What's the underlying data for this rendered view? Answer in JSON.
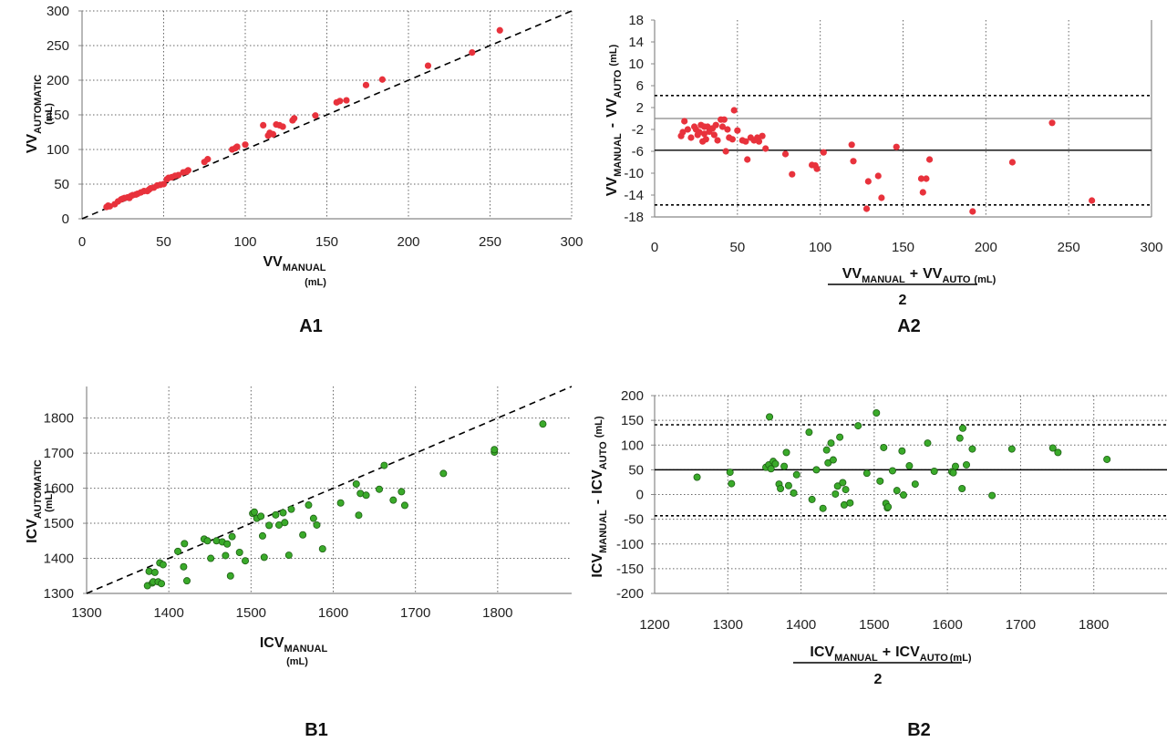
{
  "figure": {
    "panel_labels": [
      "A1",
      "A2",
      "B1",
      "B2"
    ]
  },
  "colors": {
    "red_points": "#e8323c",
    "green_points": "#3aaa2a",
    "green_edge": "#1d5e14",
    "grid": "#666666",
    "axis": "#888888",
    "line": "#000000"
  },
  "chart_data": [
    {
      "id": "A1",
      "type": "scatter",
      "panel_label": "A1",
      "xlabel": {
        "main": "VV",
        "sub": "MANUAL",
        "unit": "(mL)"
      },
      "ylabel": {
        "main": "VV",
        "sub": "AUTOMATIC",
        "unit": "(mL)"
      },
      "xlim": [
        0,
        300
      ],
      "ylim": [
        0,
        300
      ],
      "xticks": [
        0,
        50,
        100,
        150,
        200,
        250,
        300
      ],
      "yticks": [
        0,
        50,
        100,
        150,
        200,
        250,
        300
      ],
      "reference_line": "identity (dashed)",
      "grid": "dotted",
      "points": [
        [
          15,
          17
        ],
        [
          16,
          19
        ],
        [
          17,
          18
        ],
        [
          20,
          21
        ],
        [
          22,
          25
        ],
        [
          24,
          28
        ],
        [
          25,
          29
        ],
        [
          26,
          30
        ],
        [
          28,
          31
        ],
        [
          29,
          30
        ],
        [
          30,
          33
        ],
        [
          31,
          34
        ],
        [
          33,
          35
        ],
        [
          34,
          36
        ],
        [
          36,
          38
        ],
        [
          38,
          40
        ],
        [
          40,
          40
        ],
        [
          41,
          42
        ],
        [
          42,
          44
        ],
        [
          44,
          45
        ],
        [
          46,
          48
        ],
        [
          48,
          49
        ],
        [
          50,
          50
        ],
        [
          52,
          57
        ],
        [
          53,
          59
        ],
        [
          55,
          60
        ],
        [
          57,
          62
        ],
        [
          59,
          63
        ],
        [
          62,
          67
        ],
        [
          64,
          68
        ],
        [
          65,
          70
        ],
        [
          75,
          82
        ],
        [
          77,
          86
        ],
        [
          92,
          100
        ],
        [
          94,
          102
        ],
        [
          95,
          104
        ],
        [
          100,
          107
        ],
        [
          111,
          135
        ],
        [
          114,
          120
        ],
        [
          115,
          124
        ],
        [
          117,
          122
        ],
        [
          119,
          136
        ],
        [
          121,
          135
        ],
        [
          123,
          133
        ],
        [
          129,
          142
        ],
        [
          130,
          145
        ],
        [
          143,
          149
        ],
        [
          156,
          168
        ],
        [
          158,
          170
        ],
        [
          162,
          171
        ],
        [
          174,
          193
        ],
        [
          184,
          201
        ],
        [
          212,
          221
        ],
        [
          239,
          240
        ],
        [
          256,
          272
        ]
      ]
    },
    {
      "id": "A2",
      "type": "scatter",
      "panel_label": "A2",
      "xlabel": {
        "num_a": "VV",
        "num_a_sub": "MANUAL",
        "plus": "+",
        "num_b": "VV",
        "num_b_sub": "AUTO",
        "unit": "(mL)",
        "denominator": "2"
      },
      "ylabel": {
        "a": "VV",
        "a_sub": "MANUAL",
        "minus": "-",
        "b": "VV",
        "b_sub": "AUTO",
        "unit": "(mL)"
      },
      "xlim": [
        0,
        300
      ],
      "ylim": [
        -18,
        18
      ],
      "xticks": [
        0,
        50,
        100,
        150,
        200,
        250,
        300
      ],
      "yticks": [
        -18,
        -14,
        -10,
        -6,
        -2,
        2,
        6,
        10,
        14,
        18
      ],
      "ytick_labels": [
        "-18",
        "-14",
        "-10",
        "-6",
        "-2",
        "2",
        "6",
        "10",
        "14",
        "18"
      ],
      "grid": "dotted vertical",
      "zero_line": 0,
      "mean_line": -5.8,
      "limits_of_agreement": [
        -15.8,
        4.2
      ],
      "points": [
        [
          16,
          -3.2
        ],
        [
          17,
          -2.5
        ],
        [
          18,
          -0.5
        ],
        [
          20,
          -2
        ],
        [
          22,
          -3.5
        ],
        [
          24,
          -1.5
        ],
        [
          25,
          -2
        ],
        [
          26,
          -3
        ],
        [
          27,
          -2.5
        ],
        [
          28,
          -1.2
        ],
        [
          29,
          -4.2
        ],
        [
          30,
          -1.5
        ],
        [
          30,
          -2.8
        ],
        [
          31,
          -3.8
        ],
        [
          32,
          -1.5
        ],
        [
          33,
          -2.4
        ],
        [
          35,
          -1.8
        ],
        [
          36,
          -3
        ],
        [
          37,
          -1.2
        ],
        [
          38,
          -4
        ],
        [
          40,
          -0.2
        ],
        [
          41,
          -1.5
        ],
        [
          42,
          -0.2
        ],
        [
          43,
          -6
        ],
        [
          44,
          -2
        ],
        [
          45,
          -3.5
        ],
        [
          47,
          -3.8
        ],
        [
          48,
          1.5
        ],
        [
          50,
          -2.2
        ],
        [
          53,
          -4
        ],
        [
          55,
          -4.2
        ],
        [
          56,
          -7.5
        ],
        [
          58,
          -3.5
        ],
        [
          60,
          -4
        ],
        [
          62,
          -3.5
        ],
        [
          63,
          -4.2
        ],
        [
          65,
          -3.2
        ],
        [
          67,
          -5.5
        ],
        [
          79,
          -6.5
        ],
        [
          83,
          -10.2
        ],
        [
          95,
          -8.5
        ],
        [
          97,
          -8.6
        ],
        [
          98,
          -9.2
        ],
        [
          102,
          -6.2
        ],
        [
          119,
          -4.8
        ],
        [
          120,
          -7.8
        ],
        [
          128,
          -16.5
        ],
        [
          129,
          -11.5
        ],
        [
          135,
          -10.5
        ],
        [
          137,
          -14.5
        ],
        [
          146,
          -5.2
        ],
        [
          161,
          -11
        ],
        [
          162,
          -13.5
        ],
        [
          164,
          -11
        ],
        [
          166,
          -7.5
        ],
        [
          192,
          -17
        ],
        [
          216,
          -8
        ],
        [
          240,
          -0.8
        ],
        [
          264,
          -15
        ]
      ]
    },
    {
      "id": "B1",
      "type": "scatter",
      "panel_label": "B1",
      "xlabel": {
        "main": "ICV",
        "sub": "MANUAL",
        "unit": "(mL)"
      },
      "ylabel": {
        "main": "ICV",
        "sub": "AUTOMATIC",
        "unit": "(mL)"
      },
      "xlim": [
        1300,
        1890
      ],
      "ylim": [
        1300,
        1890
      ],
      "xticks": [
        1300,
        1400,
        1500,
        1600,
        1700,
        1800
      ],
      "yticks": [
        1300,
        1400,
        1500,
        1600,
        1700,
        1800
      ],
      "reference_line": "identity (dashed)",
      "grid": "dotted",
      "points": [
        [
          1374,
          1322
        ],
        [
          1376,
          1363
        ],
        [
          1380,
          1330
        ],
        [
          1381,
          1333
        ],
        [
          1383,
          1360
        ],
        [
          1387,
          1333
        ],
        [
          1389,
          1387
        ],
        [
          1391,
          1328
        ],
        [
          1393,
          1382
        ],
        [
          1411,
          1420
        ],
        [
          1418,
          1376
        ],
        [
          1419,
          1442
        ],
        [
          1422,
          1336
        ],
        [
          1443,
          1455
        ],
        [
          1447,
          1450
        ],
        [
          1451,
          1400
        ],
        [
          1458,
          1450
        ],
        [
          1465,
          1447
        ],
        [
          1469,
          1408
        ],
        [
          1471,
          1441
        ],
        [
          1475,
          1350
        ],
        [
          1477,
          1462
        ],
        [
          1486,
          1417
        ],
        [
          1493,
          1393
        ],
        [
          1502,
          1528
        ],
        [
          1504,
          1532
        ],
        [
          1507,
          1514
        ],
        [
          1512,
          1520
        ],
        [
          1514,
          1464
        ],
        [
          1516,
          1403
        ],
        [
          1522,
          1494
        ],
        [
          1530,
          1524
        ],
        [
          1534,
          1495
        ],
        [
          1539,
          1530
        ],
        [
          1541,
          1502
        ],
        [
          1546,
          1409
        ],
        [
          1549,
          1540
        ],
        [
          1563,
          1467
        ],
        [
          1570,
          1552
        ],
        [
          1576,
          1514
        ],
        [
          1580,
          1495
        ],
        [
          1587,
          1427
        ],
        [
          1609,
          1558
        ],
        [
          1628,
          1612
        ],
        [
          1631,
          1523
        ],
        [
          1633,
          1585
        ],
        [
          1640,
          1580
        ],
        [
          1656,
          1597
        ],
        [
          1662,
          1665
        ],
        [
          1673,
          1566
        ],
        [
          1683,
          1590
        ],
        [
          1687,
          1551
        ],
        [
          1734,
          1642
        ],
        [
          1796,
          1703
        ],
        [
          1796,
          1710
        ],
        [
          1855,
          1783
        ]
      ]
    },
    {
      "id": "B2",
      "type": "scatter",
      "panel_label": "B2",
      "xlabel": {
        "num_a": "ICV",
        "num_a_sub": "MANUAL",
        "plus": "+",
        "num_b": "ICV",
        "num_b_sub": "AUTO",
        "unit": "(mL)",
        "denominator": "2"
      },
      "ylabel": {
        "a": "ICV",
        "a_sub": "MANUAL",
        "minus": "-",
        "b": "ICV",
        "b_sub": "AUTO",
        "unit": "(mL)"
      },
      "xlim": [
        1200,
        1900
      ],
      "ylim": [
        -200,
        200
      ],
      "xticks": [
        1200,
        1300,
        1400,
        1500,
        1600,
        1700,
        1800
      ],
      "yticks": [
        -200,
        -150,
        -100,
        -50,
        0,
        50,
        100,
        150,
        200
      ],
      "ytick_labels": [
        "-200",
        "-150",
        "-100",
        "-50",
        "0",
        "50",
        "100",
        "150",
        "200"
      ],
      "grid": "dotted",
      "mean_line": 50,
      "limits_of_agreement": [
        -43,
        141
      ],
      "points": [
        [
          1258,
          35
        ],
        [
          1303,
          45
        ],
        [
          1305,
          22
        ],
        [
          1352,
          55
        ],
        [
          1356,
          60
        ],
        [
          1357,
          157
        ],
        [
          1359,
          52
        ],
        [
          1362,
          67
        ],
        [
          1365,
          62
        ],
        [
          1370,
          21
        ],
        [
          1372,
          12
        ],
        [
          1377,
          57
        ],
        [
          1380,
          85
        ],
        [
          1383,
          18
        ],
        [
          1390,
          3
        ],
        [
          1394,
          40
        ],
        [
          1411,
          126
        ],
        [
          1415,
          -10
        ],
        [
          1421,
          50
        ],
        [
          1430,
          -28
        ],
        [
          1435,
          90
        ],
        [
          1437,
          64
        ],
        [
          1441,
          104
        ],
        [
          1444,
          70
        ],
        [
          1447,
          1
        ],
        [
          1450,
          17
        ],
        [
          1453,
          116
        ],
        [
          1457,
          24
        ],
        [
          1459,
          -21
        ],
        [
          1461,
          10
        ],
        [
          1467,
          -17
        ],
        [
          1478,
          139
        ],
        [
          1490,
          43
        ],
        [
          1503,
          165
        ],
        [
          1508,
          27
        ],
        [
          1513,
          95
        ],
        [
          1516,
          -18
        ],
        [
          1518,
          -27
        ],
        [
          1519,
          -25
        ],
        [
          1525,
          48
        ],
        [
          1531,
          8
        ],
        [
          1538,
          88
        ],
        [
          1540,
          -1
        ],
        [
          1548,
          58
        ],
        [
          1556,
          21
        ],
        [
          1573,
          104
        ],
        [
          1582,
          47
        ],
        [
          1606,
          46
        ],
        [
          1608,
          44
        ],
        [
          1611,
          57
        ],
        [
          1617,
          114
        ],
        [
          1620,
          12
        ],
        [
          1621,
          134
        ],
        [
          1626,
          60
        ],
        [
          1634,
          92
        ],
        [
          1661,
          -2
        ],
        [
          1688,
          92
        ],
        [
          1744,
          94
        ],
        [
          1751,
          85
        ],
        [
          1818,
          71
        ]
      ]
    }
  ]
}
